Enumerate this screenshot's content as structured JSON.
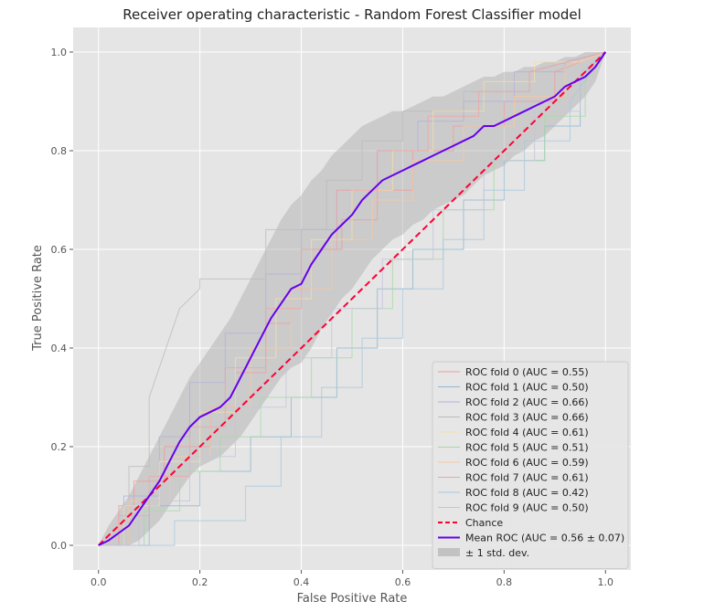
{
  "chart_data": {
    "type": "line",
    "title": "Receiver operating characteristic - Random Forest Classifier model",
    "xlabel": "False Positive Rate",
    "ylabel": "True Positive Rate",
    "xlim": [
      -0.05,
      1.05
    ],
    "ylim": [
      -0.05,
      1.05
    ],
    "xticks": [
      "0.0",
      "0.2",
      "0.4",
      "0.6",
      "0.8",
      "1.0"
    ],
    "yticks": [
      "0.0",
      "0.2",
      "0.4",
      "0.6",
      "0.8",
      "1.0"
    ],
    "grid": true,
    "legend_position": "lower-right",
    "colors": {
      "background": "#e5e5e5",
      "grid": "#ffffff",
      "chance": "#ff0033",
      "mean": "#6600ee",
      "std_band": "#aaaaaa"
    },
    "folds": [
      {
        "name": "ROC fold 0 (AUC = 0.55)",
        "color": "#f39a9a",
        "x": [
          0,
          0.04,
          0.04,
          0.07,
          0.07,
          0.13,
          0.13,
          0.22,
          0.22,
          0.27,
          0.27,
          0.33,
          0.33,
          0.38,
          0.38,
          0.42,
          0.42,
          0.48,
          0.48,
          0.55,
          0.55,
          0.62,
          0.62,
          0.7,
          0.7,
          0.8,
          0.8,
          0.9,
          0.9,
          1.0
        ],
        "y": [
          0,
          0,
          0.08,
          0.08,
          0.13,
          0.13,
          0.2,
          0.2,
          0.28,
          0.28,
          0.35,
          0.35,
          0.45,
          0.45,
          0.52,
          0.52,
          0.6,
          0.6,
          0.66,
          0.66,
          0.72,
          0.72,
          0.8,
          0.8,
          0.85,
          0.85,
          0.9,
          0.9,
          0.96,
          1.0
        ]
      },
      {
        "name": "ROC fold 1 (AUC = 0.50)",
        "color": "#8fb8d0",
        "x": [
          0,
          0.1,
          0.1,
          0.2,
          0.2,
          0.3,
          0.3,
          0.38,
          0.38,
          0.47,
          0.47,
          0.55,
          0.55,
          0.62,
          0.62,
          0.72,
          0.72,
          0.8,
          0.8,
          0.88,
          0.88,
          0.95,
          0.95,
          1.0
        ],
        "y": [
          0,
          0,
          0.08,
          0.08,
          0.15,
          0.15,
          0.22,
          0.22,
          0.3,
          0.3,
          0.4,
          0.4,
          0.52,
          0.52,
          0.6,
          0.6,
          0.7,
          0.7,
          0.78,
          0.78,
          0.85,
          0.85,
          0.95,
          1.0
        ]
      },
      {
        "name": "ROC fold 2 (AUC = 0.66)",
        "color": "#b0b0e0",
        "x": [
          0,
          0.05,
          0.05,
          0.12,
          0.12,
          0.18,
          0.18,
          0.25,
          0.25,
          0.33,
          0.33,
          0.4,
          0.4,
          0.47,
          0.47,
          0.55,
          0.55,
          0.63,
          0.63,
          0.72,
          0.72,
          0.82,
          0.82,
          0.92,
          0.92,
          1.0
        ],
        "y": [
          0,
          0,
          0.1,
          0.1,
          0.22,
          0.22,
          0.33,
          0.33,
          0.43,
          0.43,
          0.55,
          0.55,
          0.64,
          0.64,
          0.72,
          0.72,
          0.8,
          0.8,
          0.86,
          0.86,
          0.9,
          0.9,
          0.96,
          0.96,
          0.98,
          1.0
        ]
      },
      {
        "name": "ROC fold 3 (AUC = 0.66)",
        "color": "#bbbbbb",
        "x": [
          0,
          0.06,
          0.06,
          0.1,
          0.1,
          0.14,
          0.16,
          0.2,
          0.2,
          0.28,
          0.33,
          0.33,
          0.45,
          0.45,
          0.52,
          0.52,
          0.6,
          0.6,
          0.72,
          0.72,
          0.85,
          0.85,
          1.0
        ],
        "y": [
          0,
          0,
          0.16,
          0.16,
          0.3,
          0.42,
          0.48,
          0.52,
          0.54,
          0.54,
          0.54,
          0.64,
          0.64,
          0.74,
          0.74,
          0.82,
          0.82,
          0.88,
          0.88,
          0.92,
          0.92,
          0.96,
          1.0
        ]
      },
      {
        "name": "ROC fold 4 (AUC = 0.61)",
        "color": "#f5deaa",
        "x": [
          0,
          0.05,
          0.05,
          0.12,
          0.12,
          0.2,
          0.2,
          0.27,
          0.27,
          0.35,
          0.35,
          0.42,
          0.42,
          0.5,
          0.5,
          0.58,
          0.58,
          0.66,
          0.66,
          0.76,
          0.76,
          0.86,
          0.86,
          0.95,
          1.0
        ],
        "y": [
          0,
          0,
          0.08,
          0.08,
          0.17,
          0.17,
          0.27,
          0.27,
          0.38,
          0.38,
          0.5,
          0.5,
          0.62,
          0.62,
          0.72,
          0.72,
          0.8,
          0.8,
          0.88,
          0.88,
          0.94,
          0.94,
          0.98,
          0.98,
          1.0
        ]
      },
      {
        "name": "ROC fold 5 (AUC = 0.51)",
        "color": "#a8d8a8",
        "x": [
          0,
          0.09,
          0.09,
          0.16,
          0.16,
          0.24,
          0.24,
          0.32,
          0.32,
          0.42,
          0.42,
          0.5,
          0.5,
          0.58,
          0.58,
          0.68,
          0.68,
          0.78,
          0.78,
          0.88,
          0.88,
          0.96,
          0.96,
          1.0
        ],
        "y": [
          0,
          0,
          0.07,
          0.07,
          0.15,
          0.15,
          0.22,
          0.22,
          0.3,
          0.3,
          0.38,
          0.38,
          0.48,
          0.48,
          0.58,
          0.58,
          0.68,
          0.68,
          0.78,
          0.78,
          0.87,
          0.87,
          0.94,
          1.0
        ]
      },
      {
        "name": "ROC fold 6 (AUC = 0.59)",
        "color": "#f8c8a0",
        "x": [
          0,
          0.06,
          0.06,
          0.14,
          0.14,
          0.22,
          0.22,
          0.3,
          0.3,
          0.38,
          0.38,
          0.46,
          0.46,
          0.54,
          0.54,
          0.62,
          0.62,
          0.72,
          0.72,
          0.82,
          0.82,
          0.92,
          0.92,
          1.0
        ],
        "y": [
          0,
          0,
          0.09,
          0.09,
          0.18,
          0.18,
          0.28,
          0.28,
          0.4,
          0.4,
          0.52,
          0.52,
          0.62,
          0.62,
          0.7,
          0.7,
          0.78,
          0.78,
          0.85,
          0.85,
          0.91,
          0.91,
          0.97,
          1.0
        ]
      },
      {
        "name": "ROC fold 7 (AUC = 0.61)",
        "color": "#f2a2a2",
        "x": [
          0,
          0.04,
          0.04,
          0.1,
          0.1,
          0.18,
          0.18,
          0.25,
          0.25,
          0.33,
          0.33,
          0.4,
          0.4,
          0.47,
          0.47,
          0.55,
          0.55,
          0.65,
          0.65,
          0.75,
          0.75,
          0.85,
          0.85,
          1.0
        ],
        "y": [
          0,
          0,
          0.06,
          0.06,
          0.14,
          0.14,
          0.24,
          0.24,
          0.36,
          0.36,
          0.48,
          0.48,
          0.6,
          0.6,
          0.72,
          0.72,
          0.8,
          0.8,
          0.87,
          0.87,
          0.92,
          0.92,
          0.96,
          1.0
        ]
      },
      {
        "name": "ROC fold 8 (AUC = 0.42)",
        "color": "#a8c8e0",
        "x": [
          0,
          0.15,
          0.15,
          0.29,
          0.29,
          0.36,
          0.36,
          0.44,
          0.44,
          0.52,
          0.52,
          0.6,
          0.6,
          0.68,
          0.68,
          0.76,
          0.76,
          0.84,
          0.84,
          0.93,
          0.93,
          1.0
        ],
        "y": [
          0,
          0,
          0.05,
          0.05,
          0.12,
          0.12,
          0.22,
          0.22,
          0.32,
          0.32,
          0.42,
          0.42,
          0.52,
          0.52,
          0.62,
          0.62,
          0.72,
          0.72,
          0.82,
          0.82,
          0.9,
          1.0
        ]
      },
      {
        "name": "ROC fold 9 (AUC = 0.50)",
        "color": "#c4c4dc",
        "x": [
          0,
          0.08,
          0.08,
          0.18,
          0.18,
          0.27,
          0.27,
          0.37,
          0.37,
          0.46,
          0.46,
          0.56,
          0.56,
          0.66,
          0.66,
          0.76,
          0.76,
          0.86,
          0.86,
          0.95,
          0.95,
          1.0
        ],
        "y": [
          0,
          0,
          0.09,
          0.09,
          0.18,
          0.18,
          0.28,
          0.28,
          0.38,
          0.38,
          0.48,
          0.48,
          0.58,
          0.58,
          0.68,
          0.68,
          0.78,
          0.78,
          0.88,
          0.88,
          0.96,
          1.0
        ]
      }
    ],
    "chance": {
      "name": "Chance",
      "x": [
        0,
        1
      ],
      "y": [
        0,
        1
      ]
    },
    "mean": {
      "name": "Mean ROC (AUC = 0.56 ± 0.07)",
      "x": [
        0,
        0.02,
        0.04,
        0.06,
        0.08,
        0.1,
        0.12,
        0.14,
        0.16,
        0.18,
        0.2,
        0.22,
        0.24,
        0.26,
        0.28,
        0.3,
        0.32,
        0.34,
        0.36,
        0.38,
        0.4,
        0.42,
        0.44,
        0.46,
        0.48,
        0.5,
        0.52,
        0.54,
        0.56,
        0.58,
        0.6,
        0.62,
        0.64,
        0.66,
        0.68,
        0.7,
        0.72,
        0.74,
        0.76,
        0.78,
        0.8,
        0.82,
        0.84,
        0.86,
        0.88,
        0.9,
        0.92,
        0.94,
        0.96,
        0.98,
        1.0
      ],
      "y": [
        0,
        0.01,
        0.025,
        0.04,
        0.07,
        0.1,
        0.13,
        0.17,
        0.21,
        0.24,
        0.26,
        0.27,
        0.28,
        0.3,
        0.34,
        0.38,
        0.42,
        0.46,
        0.49,
        0.52,
        0.53,
        0.57,
        0.6,
        0.63,
        0.65,
        0.67,
        0.7,
        0.72,
        0.74,
        0.75,
        0.76,
        0.77,
        0.78,
        0.79,
        0.8,
        0.81,
        0.82,
        0.83,
        0.85,
        0.85,
        0.86,
        0.87,
        0.88,
        0.89,
        0.9,
        0.91,
        0.93,
        0.94,
        0.95,
        0.97,
        1.0
      ]
    },
    "std_band": {
      "name": "± 1 std. dev.",
      "upper": [
        0,
        0.04,
        0.07,
        0.1,
        0.14,
        0.18,
        0.22,
        0.26,
        0.3,
        0.34,
        0.37,
        0.4,
        0.43,
        0.46,
        0.5,
        0.54,
        0.58,
        0.62,
        0.66,
        0.69,
        0.71,
        0.74,
        0.76,
        0.79,
        0.81,
        0.83,
        0.85,
        0.86,
        0.87,
        0.88,
        0.88,
        0.89,
        0.9,
        0.91,
        0.91,
        0.92,
        0.93,
        0.94,
        0.95,
        0.95,
        0.96,
        0.96,
        0.97,
        0.97,
        0.98,
        0.98,
        0.99,
        0.99,
        1.0,
        1.0,
        1.0
      ],
      "lower": [
        0,
        0.0,
        0.0,
        0.0,
        0.01,
        0.03,
        0.05,
        0.08,
        0.11,
        0.14,
        0.16,
        0.17,
        0.18,
        0.2,
        0.22,
        0.25,
        0.28,
        0.31,
        0.34,
        0.36,
        0.37,
        0.4,
        0.44,
        0.47,
        0.5,
        0.52,
        0.55,
        0.58,
        0.6,
        0.62,
        0.63,
        0.65,
        0.66,
        0.68,
        0.69,
        0.7,
        0.71,
        0.73,
        0.75,
        0.76,
        0.77,
        0.79,
        0.8,
        0.82,
        0.83,
        0.85,
        0.87,
        0.89,
        0.91,
        0.94,
        1.0
      ]
    }
  }
}
